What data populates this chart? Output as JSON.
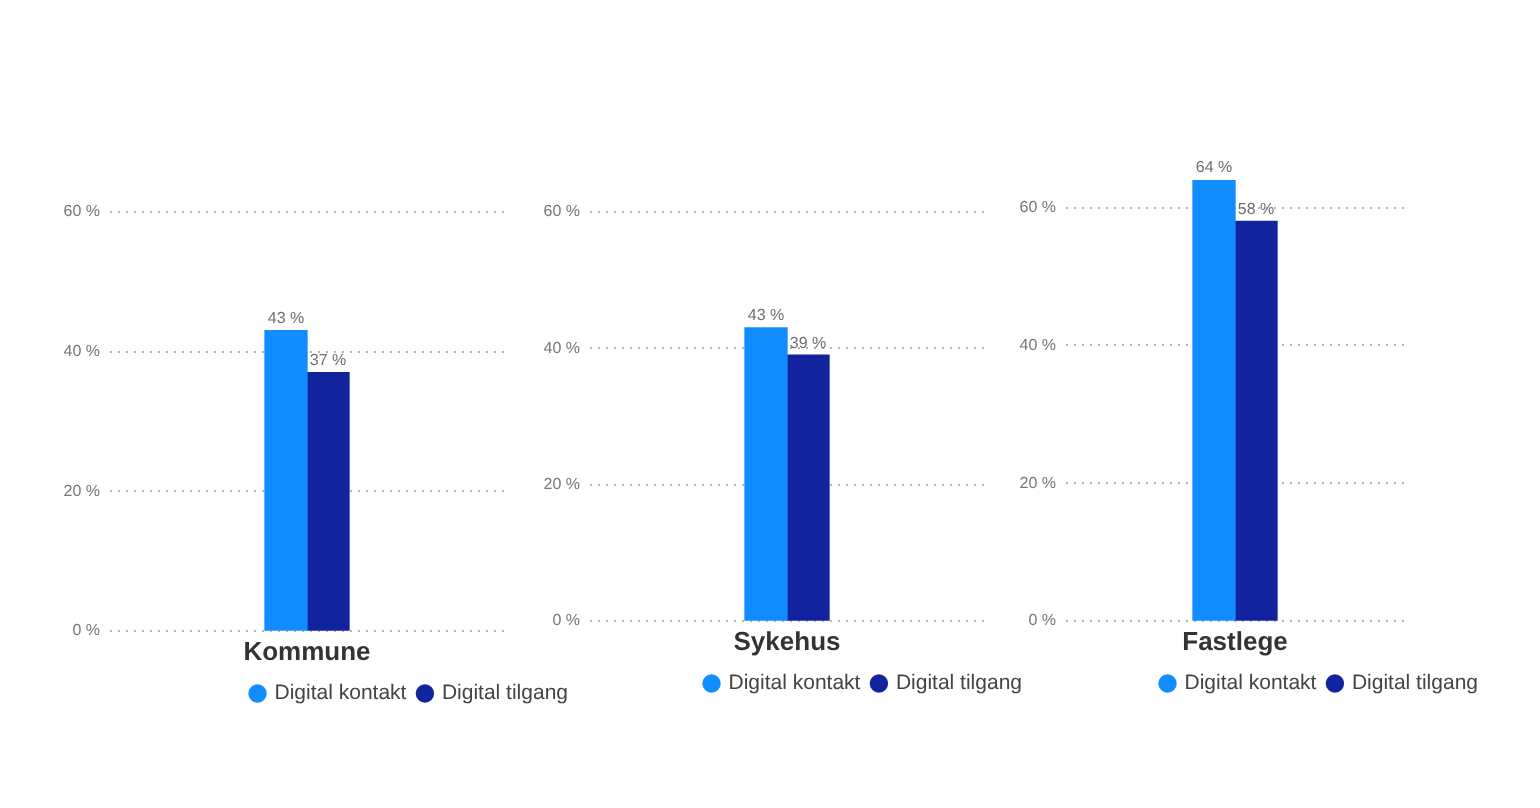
{
  "chart_data": [
    {
      "type": "bar",
      "categories": [
        "Kommune"
      ],
      "series": [
        {
          "name": "Digital kontakt",
          "color": "#118dff",
          "values": [
            43
          ],
          "value_labels": [
            "43 %"
          ]
        },
        {
          "name": "Digital tilgang",
          "color": "#12239e",
          "values": [
            37
          ],
          "value_labels": [
            "37 %"
          ]
        }
      ],
      "ylim": [
        0,
        60
      ],
      "yticks": [
        {
          "value": 0,
          "label": "0 %"
        },
        {
          "value": 20,
          "label": "20 %"
        },
        {
          "value": 40,
          "label": "40 %"
        },
        {
          "value": 60,
          "label": "60 %"
        }
      ],
      "grid": "y",
      "legend": "bottom"
    },
    {
      "type": "bar",
      "categories": [
        "Sykehus"
      ],
      "series": [
        {
          "name": "Digital kontakt",
          "color": "#118dff",
          "values": [
            43
          ],
          "value_labels": [
            "43 %"
          ]
        },
        {
          "name": "Digital tilgang",
          "color": "#12239e",
          "values": [
            39
          ],
          "value_labels": [
            "39 %"
          ]
        }
      ],
      "ylim": [
        0,
        60
      ],
      "yticks": [
        {
          "value": 0,
          "label": "0 %"
        },
        {
          "value": 20,
          "label": "20 %"
        },
        {
          "value": 40,
          "label": "40 %"
        },
        {
          "value": 60,
          "label": "60 %"
        }
      ],
      "grid": "y",
      "legend": "bottom"
    },
    {
      "type": "bar",
      "categories": [
        "Fastlege"
      ],
      "series": [
        {
          "name": "Digital kontakt",
          "color": "#118dff",
          "values": [
            64
          ],
          "value_labels": [
            "64 %"
          ]
        },
        {
          "name": "Digital tilgang",
          "color": "#12239e",
          "values": [
            58
          ],
          "value_labels": [
            "58 %"
          ]
        }
      ],
      "ylim": [
        0,
        64
      ],
      "yticks": [
        {
          "value": 0,
          "label": "0 %"
        },
        {
          "value": 20,
          "label": "20 %"
        },
        {
          "value": 40,
          "label": "40 %"
        },
        {
          "value": 60,
          "label": "60 %"
        }
      ],
      "grid": "y",
      "legend": "bottom"
    }
  ]
}
